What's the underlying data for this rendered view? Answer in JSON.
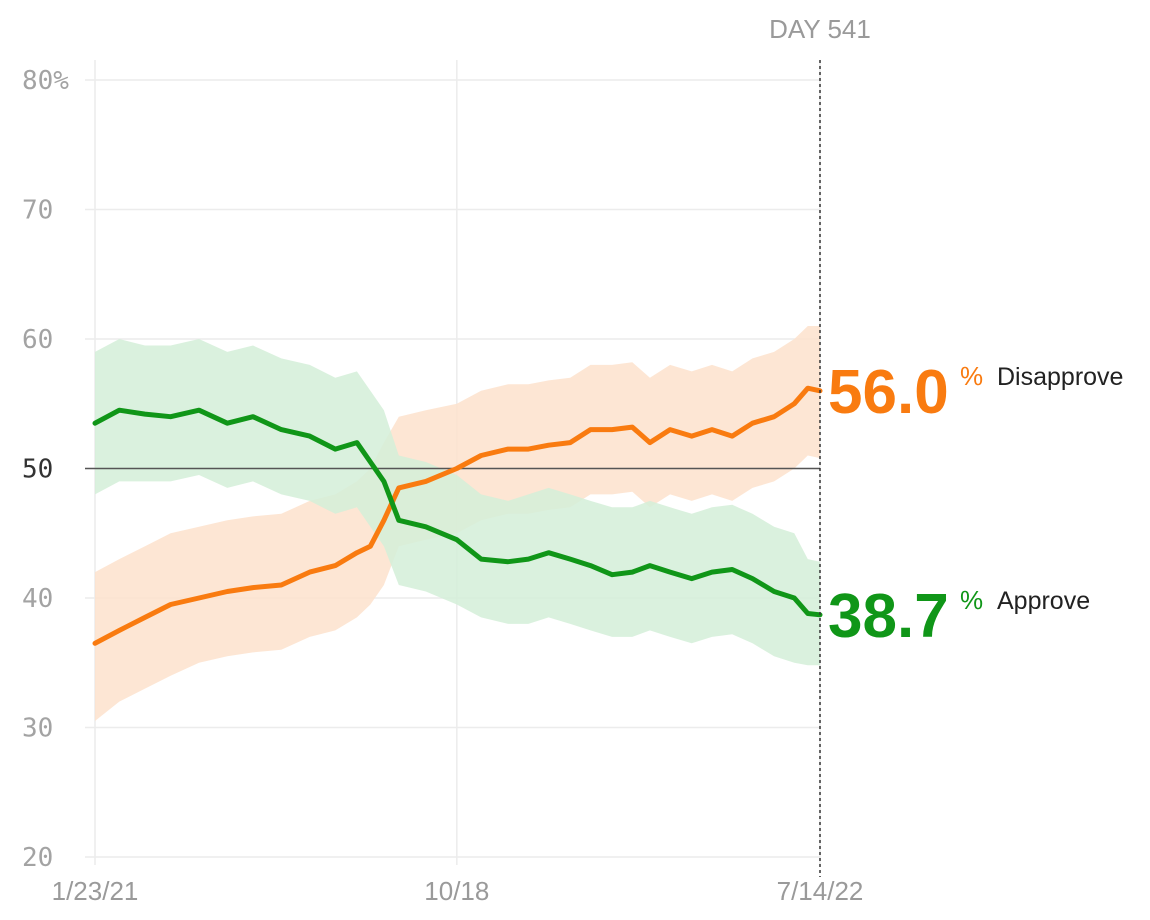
{
  "chart_data": {
    "type": "line",
    "x_axis": {
      "ticks": [
        "1/23/21",
        "10/18",
        "7/14/22"
      ]
    },
    "y_axis": {
      "ticks": [
        "80%",
        "70",
        "60",
        "50",
        "40",
        "30",
        "20"
      ],
      "ylim": [
        20,
        80
      ],
      "midline": 50
    },
    "grid": true,
    "current_day_label": "DAY 541",
    "series": [
      {
        "name": "Disapprove",
        "color": "#f97b10",
        "band_color": "#fde2cc",
        "current_value": "56.0",
        "current_unit": "%",
        "x": [
          "2021-01-23",
          "2021-02-10",
          "2021-03-01",
          "2021-03-20",
          "2021-04-10",
          "2021-05-01",
          "2021-05-20",
          "2021-06-10",
          "2021-07-01",
          "2021-07-20",
          "2021-08-05",
          "2021-08-15",
          "2021-08-25",
          "2021-09-05",
          "2021-09-25",
          "2021-10-18",
          "2021-11-05",
          "2021-11-25",
          "2021-12-10",
          "2021-12-25",
          "2022-01-10",
          "2022-01-25",
          "2022-02-10",
          "2022-02-25",
          "2022-03-10",
          "2022-03-25",
          "2022-04-10",
          "2022-04-25",
          "2022-05-10",
          "2022-05-25",
          "2022-06-10",
          "2022-06-25",
          "2022-07-05",
          "2022-07-14"
        ],
        "values": [
          36.5,
          37.5,
          38.5,
          39.5,
          40,
          40.5,
          40.8,
          41,
          42,
          42.5,
          43.5,
          44,
          46,
          48.5,
          49,
          50,
          51,
          51.5,
          51.5,
          51.8,
          52,
          53,
          53,
          53.2,
          52,
          53,
          52.5,
          53,
          52.5,
          53.5,
          54,
          55,
          56.2,
          56.0
        ],
        "band_low": [
          30.5,
          32,
          33,
          34,
          35,
          35.5,
          35.8,
          36,
          37,
          37.5,
          38.5,
          39.5,
          41,
          44,
          44.5,
          45,
          46,
          46.5,
          46.5,
          46.8,
          47,
          48,
          48,
          48.2,
          47,
          48,
          47.5,
          48,
          47.5,
          48.5,
          49,
          50,
          51,
          50.8
        ],
        "band_high": [
          42,
          43,
          44,
          45,
          45.5,
          46,
          46.3,
          46.5,
          47.5,
          48,
          49,
          50,
          52,
          54,
          54.5,
          55,
          56,
          56.5,
          56.5,
          56.8,
          57,
          58,
          58,
          58.2,
          57,
          58,
          57.5,
          58,
          57.5,
          58.5,
          59,
          60,
          61,
          61
        ]
      },
      {
        "name": "Approve",
        "color": "#109618",
        "band_color": "#d4eed8",
        "current_value": "38.7",
        "current_unit": "%",
        "x": [
          "2021-01-23",
          "2021-02-10",
          "2021-03-01",
          "2021-03-20",
          "2021-04-10",
          "2021-05-01",
          "2021-05-20",
          "2021-06-10",
          "2021-07-01",
          "2021-07-20",
          "2021-08-05",
          "2021-08-15",
          "2021-08-25",
          "2021-09-05",
          "2021-09-25",
          "2021-10-18",
          "2021-11-05",
          "2021-11-25",
          "2021-12-10",
          "2021-12-25",
          "2022-01-10",
          "2022-01-25",
          "2022-02-10",
          "2022-02-25",
          "2022-03-10",
          "2022-03-25",
          "2022-04-10",
          "2022-04-25",
          "2022-05-10",
          "2022-05-25",
          "2022-06-10",
          "2022-06-25",
          "2022-07-05",
          "2022-07-14"
        ],
        "values": [
          53.5,
          54.5,
          54.2,
          54,
          54.5,
          53.5,
          54,
          53,
          52.5,
          51.5,
          52,
          50.5,
          49,
          46,
          45.5,
          44.5,
          43,
          42.8,
          43,
          43.5,
          43,
          42.5,
          41.8,
          42,
          42.5,
          42,
          41.5,
          42,
          42.2,
          41.5,
          40.5,
          40,
          38.8,
          38.7
        ],
        "band_low": [
          48,
          49,
          49,
          49,
          49.5,
          48.5,
          49,
          48,
          47.5,
          46.5,
          47,
          45.5,
          44,
          41,
          40.5,
          39.5,
          38.5,
          38,
          38,
          38.5,
          38,
          37.5,
          37,
          37,
          37.5,
          37,
          36.5,
          37,
          37.2,
          36.5,
          35.5,
          35,
          34.8,
          34.8
        ],
        "band_high": [
          59,
          60,
          59.5,
          59.5,
          60,
          59,
          59.5,
          58.5,
          58,
          57,
          57.5,
          56,
          54.5,
          51,
          50.5,
          49.5,
          48,
          47.5,
          48,
          48.5,
          48,
          47.5,
          47,
          47,
          47.5,
          47,
          46.5,
          47,
          47.2,
          46.5,
          45.5,
          45,
          43,
          42.8
        ]
      }
    ]
  }
}
